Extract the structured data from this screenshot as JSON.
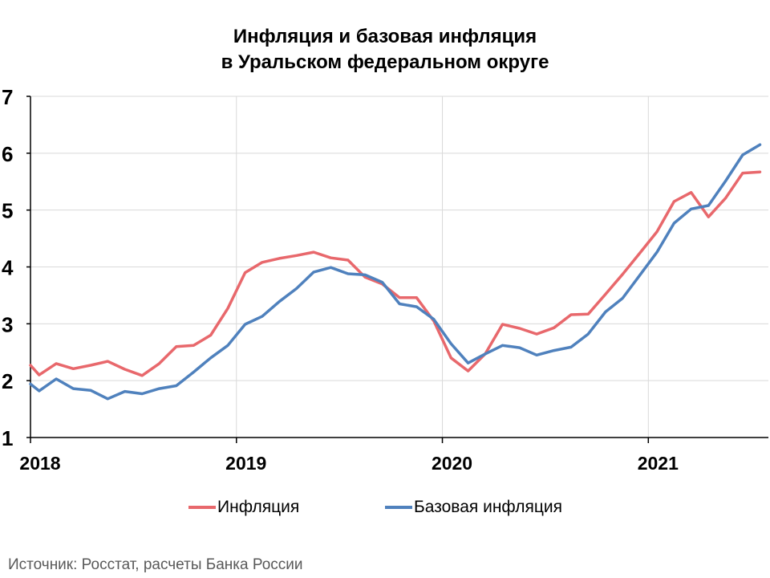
{
  "chart_data": {
    "type": "line",
    "title_line1": "Инфляция и базовая инфляция",
    "title_line2": "в  Уральском федеральном округе",
    "ylim": [
      1,
      7
    ],
    "yticks": [
      "1",
      "2",
      "3",
      "4",
      "5",
      "6",
      "7"
    ],
    "xlim": [
      2018.0,
      2021.583
    ],
    "xticks": [
      "2018",
      "2019",
      "2020",
      "2021"
    ],
    "grid": true,
    "legend_position": "bottom",
    "x": [
      2018.0,
      2018.042,
      2018.125,
      2018.208,
      2018.292,
      2018.375,
      2018.458,
      2018.542,
      2018.625,
      2018.708,
      2018.792,
      2018.875,
      2018.958,
      2019.042,
      2019.125,
      2019.208,
      2019.292,
      2019.375,
      2019.458,
      2019.542,
      2019.625,
      2019.708,
      2019.792,
      2019.875,
      2019.958,
      2020.042,
      2020.125,
      2020.208,
      2020.292,
      2020.375,
      2020.458,
      2020.542,
      2020.625,
      2020.708,
      2020.792,
      2020.875,
      2020.958,
      2021.042,
      2021.125,
      2021.208,
      2021.292,
      2021.375,
      2021.458,
      2021.542
    ],
    "series": [
      {
        "name": "Инфляция",
        "color": "#e8686c",
        "values": [
          2.27,
          2.1,
          2.3,
          2.21,
          2.27,
          2.34,
          2.2,
          2.09,
          2.3,
          2.6,
          2.62,
          2.8,
          3.27,
          3.9,
          4.08,
          4.15,
          4.2,
          4.26,
          4.16,
          4.12,
          3.82,
          3.7,
          3.46,
          3.46,
          3.05,
          2.4,
          2.17,
          2.47,
          2.99,
          2.92,
          2.82,
          2.93,
          3.16,
          3.17,
          3.52,
          3.87,
          4.24,
          4.62,
          5.15,
          5.31,
          4.88,
          5.21,
          5.65,
          5.67
        ]
      },
      {
        "name": "Базовая инфляция",
        "color": "#4f81bd",
        "values": [
          1.94,
          1.82,
          2.03,
          1.86,
          1.83,
          1.68,
          1.81,
          1.77,
          1.86,
          1.91,
          2.15,
          2.4,
          2.62,
          2.99,
          3.13,
          3.39,
          3.62,
          3.91,
          3.99,
          3.88,
          3.86,
          3.73,
          3.35,
          3.3,
          3.08,
          2.65,
          2.31,
          2.47,
          2.62,
          2.58,
          2.45,
          2.53,
          2.59,
          2.82,
          3.21,
          3.45,
          3.85,
          4.26,
          4.77,
          5.02,
          5.08,
          5.51,
          5.97,
          6.15
        ]
      }
    ]
  },
  "source": "Источник: Росстат, расчеты Банка России"
}
